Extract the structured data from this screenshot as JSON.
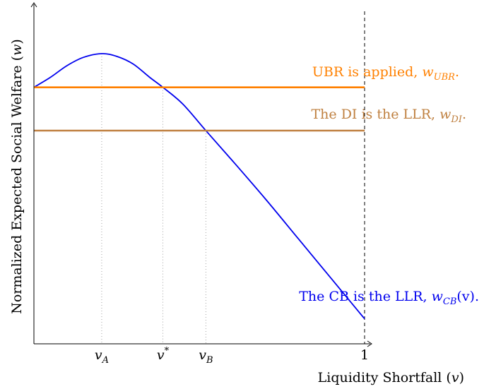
{
  "chart_data": {
    "type": "line",
    "title": "",
    "xlabel": "Liquidity Shortfall (v)",
    "ylabel": "Normalized Expected Social Welfare (w)",
    "xlim": [
      0,
      1.02
    ],
    "ylim": [
      0,
      1.0
    ],
    "grid": false,
    "x_ticks": [
      {
        "value": 0.205,
        "label": "v",
        "sub": "A",
        "sup": ""
      },
      {
        "value": 0.39,
        "label": "v",
        "sub": "",
        "sup": "*"
      },
      {
        "value": 0.52,
        "label": "v",
        "sub": "B",
        "sup": ""
      },
      {
        "value": 1.0,
        "label": "1",
        "sub": "",
        "sup": ""
      }
    ],
    "series": [
      {
        "name": "The CB is the LLR, w_CB(v).",
        "label_text": "The CB is the LLR, ",
        "label_var": "w",
        "label_sub": "CB",
        "label_tail": "(v).",
        "color": "#0000ee",
        "x": [
          0,
          0.05,
          0.1,
          0.15,
          0.205,
          0.25,
          0.3,
          0.35,
          0.39,
          0.45,
          0.52,
          0.6,
          0.7,
          0.8,
          0.9,
          1.0
        ],
        "y": [
          0.77,
          0.8,
          0.835,
          0.86,
          0.871,
          0.863,
          0.84,
          0.8,
          0.77,
          0.72,
          0.64,
          0.55,
          0.435,
          0.315,
          0.195,
          0.075
        ]
      },
      {
        "name": "UBR is applied, w_UBR.",
        "label_text": "UBR is applied, ",
        "label_var": "w",
        "label_sub": "UBR",
        "label_tail": ".",
        "color": "#ff8000",
        "x": [
          0,
          1.0
        ],
        "y": [
          0.77,
          0.77
        ]
      },
      {
        "name": "The DI is the LLR, w_DI.",
        "label_text": "The DI is the LLR, ",
        "label_var": "w",
        "label_sub": "DI",
        "label_tail": ".",
        "color": "#bf8040",
        "x": [
          0,
          1.0
        ],
        "y": [
          0.64,
          0.64
        ]
      }
    ],
    "reference_lines": [
      {
        "axis": "x",
        "value": 0.205,
        "style": "dotted",
        "to_series": "The CB is the LLR, w_CB(v)."
      },
      {
        "axis": "x",
        "value": 0.39,
        "style": "dotted",
        "to_series": "UBR is applied, w_UBR."
      },
      {
        "axis": "x",
        "value": 0.52,
        "style": "dotted",
        "to_series": "The DI is the LLR, w_DI."
      },
      {
        "axis": "x",
        "value": 1.0,
        "style": "dashed",
        "to_series": ""
      }
    ]
  }
}
